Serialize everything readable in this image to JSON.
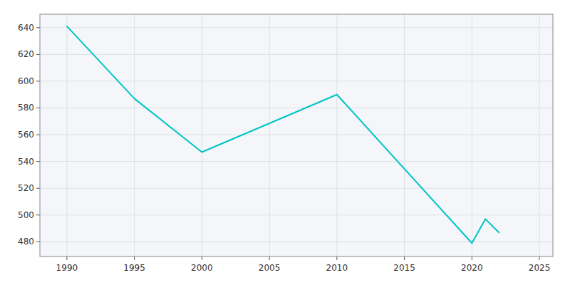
{
  "chart_data": {
    "type": "line",
    "x": [
      1990,
      1995,
      2000,
      2010,
      2020,
      2021,
      2022
    ],
    "values": [
      641,
      587,
      547,
      590,
      479,
      497,
      487
    ],
    "color": "#00C5C5",
    "xlim": [
      1988,
      2026
    ],
    "ylim": [
      469,
      650
    ],
    "xticks": [
      1990,
      1995,
      2000,
      2005,
      2010,
      2015,
      2020,
      2025
    ],
    "yticks": [
      480,
      500,
      520,
      540,
      560,
      580,
      600,
      620,
      640
    ],
    "grid": true
  }
}
